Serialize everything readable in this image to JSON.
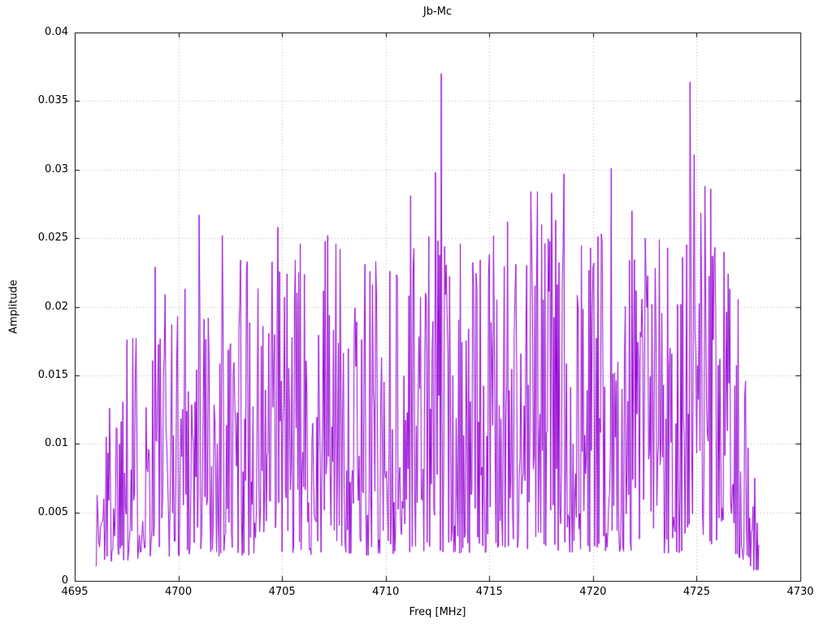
{
  "chart_data": {
    "type": "line",
    "title": "Jb-Mc",
    "xlabel": "Freq [MHz]",
    "ylabel": "Amplitude",
    "xlim": [
      4695,
      4730
    ],
    "ylim": [
      0,
      0.04
    ],
    "xticks": [
      4695,
      4700,
      4705,
      4710,
      4715,
      4720,
      4725,
      4730
    ],
    "xtick_labels": [
      "4695",
      "4700",
      "4705",
      "4710",
      "4715",
      "4720",
      "4725",
      "4730"
    ],
    "yticks": [
      0,
      0.005,
      0.01,
      0.015,
      0.02,
      0.025,
      0.03,
      0.035,
      0.04
    ],
    "ytick_labels": [
      "0",
      "0.005",
      "0.01",
      "0.015",
      "0.02",
      "0.025",
      "0.03",
      "0.035",
      "0.04"
    ],
    "grid": true,
    "grid_color": "#b0b0b0",
    "border_color": "#000000",
    "legend": "none",
    "series": [
      {
        "name": "Jb-Mc",
        "color": "#9400D3",
        "x_start": 4696.0,
        "x_end": 4728.0,
        "x_step": 0.04,
        "noise_seed": 1337,
        "noise_floor": 0.0008,
        "noise_base_frac": 0.08,
        "noise_exponent": 1.7,
        "envelope": [
          [
            4696.0,
            0.008
          ],
          [
            4696.5,
            0.012
          ],
          [
            4697.0,
            0.018
          ],
          [
            4698.0,
            0.019
          ],
          [
            4699.0,
            0.022
          ],
          [
            4700.0,
            0.022
          ],
          [
            4701.0,
            0.023
          ],
          [
            4702.0,
            0.022
          ],
          [
            4703.0,
            0.023
          ],
          [
            4704.0,
            0.023
          ],
          [
            4705.0,
            0.025
          ],
          [
            4706.0,
            0.023
          ],
          [
            4707.0,
            0.025
          ],
          [
            4708.0,
            0.024
          ],
          [
            4709.0,
            0.023
          ],
          [
            4710.0,
            0.023
          ],
          [
            4711.0,
            0.026
          ],
          [
            4712.0,
            0.027
          ],
          [
            4713.0,
            0.026
          ],
          [
            4714.0,
            0.024
          ],
          [
            4715.0,
            0.025
          ],
          [
            4716.0,
            0.026
          ],
          [
            4717.0,
            0.027
          ],
          [
            4718.0,
            0.028
          ],
          [
            4719.0,
            0.026
          ],
          [
            4720.0,
            0.026
          ],
          [
            4721.0,
            0.027
          ],
          [
            4722.0,
            0.026
          ],
          [
            4723.0,
            0.025
          ],
          [
            4724.0,
            0.025
          ],
          [
            4725.0,
            0.028
          ],
          [
            4726.0,
            0.024
          ],
          [
            4727.0,
            0.021
          ],
          [
            4727.6,
            0.012
          ],
          [
            4728.0,
            0.003
          ]
        ],
        "peaks": [
          [
            4696.5,
            0.0105
          ],
          [
            4697.5,
            0.0176
          ],
          [
            4697.8,
            0.0177
          ],
          [
            4698.9,
            0.0229
          ],
          [
            4700.3,
            0.0213
          ],
          [
            4701.0,
            0.0267
          ],
          [
            4702.1,
            0.0252
          ],
          [
            4703.0,
            0.0234
          ],
          [
            4703.3,
            0.0233
          ],
          [
            4704.8,
            0.0258
          ],
          [
            4705.9,
            0.0246
          ],
          [
            4707.2,
            0.0252
          ],
          [
            4707.6,
            0.0246
          ],
          [
            4709.0,
            0.0231
          ],
          [
            4709.5,
            0.0233
          ],
          [
            4710.2,
            0.0226
          ],
          [
            4711.2,
            0.0281
          ],
          [
            4712.4,
            0.0298
          ],
          [
            4712.7,
            0.037
          ],
          [
            4713.6,
            0.0246
          ],
          [
            4715.0,
            0.0238
          ],
          [
            4715.9,
            0.0262
          ],
          [
            4717.0,
            0.0284
          ],
          [
            4717.3,
            0.0284
          ],
          [
            4718.0,
            0.0283
          ],
          [
            4718.6,
            0.0297
          ],
          [
            4719.9,
            0.0243
          ],
          [
            4720.9,
            0.0301
          ],
          [
            4721.9,
            0.027
          ],
          [
            4722.5,
            0.025
          ],
          [
            4723.2,
            0.0249
          ],
          [
            4723.6,
            0.0243
          ],
          [
            4724.3,
            0.0236
          ],
          [
            4724.7,
            0.0364
          ],
          [
            4724.9,
            0.0311
          ],
          [
            4725.4,
            0.0288
          ],
          [
            4725.7,
            0.0286
          ],
          [
            4726.3,
            0.024
          ],
          [
            4726.6,
            0.0213
          ],
          [
            4727.8,
            0.0075
          ]
        ]
      }
    ]
  },
  "layout_note": ""
}
